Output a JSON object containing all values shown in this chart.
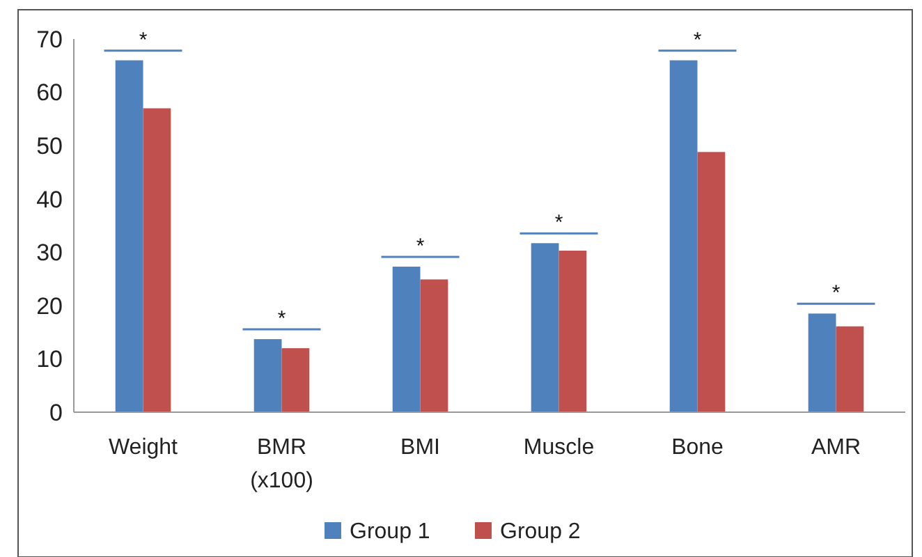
{
  "chart_data": {
    "type": "bar",
    "categories": [
      "Weight",
      "BMR (x100)",
      "BMI",
      "Muscle",
      "Bone",
      "AMR"
    ],
    "series": [
      {
        "name": "Group 1",
        "color": "#4f81bd",
        "values": [
          66,
          13.7,
          27.3,
          31.7,
          66,
          18.5
        ]
      },
      {
        "name": "Group 2",
        "color": "#c0504d",
        "values": [
          57,
          12,
          24.9,
          30.3,
          48.8,
          16.1
        ]
      }
    ],
    "ylim": [
      0,
      70
    ],
    "yticks": [
      0,
      10,
      20,
      30,
      40,
      50,
      60,
      70
    ],
    "grid": false,
    "legend": "bottom",
    "annotations": [
      "*",
      "*",
      "*",
      "*",
      "*",
      "*"
    ]
  }
}
